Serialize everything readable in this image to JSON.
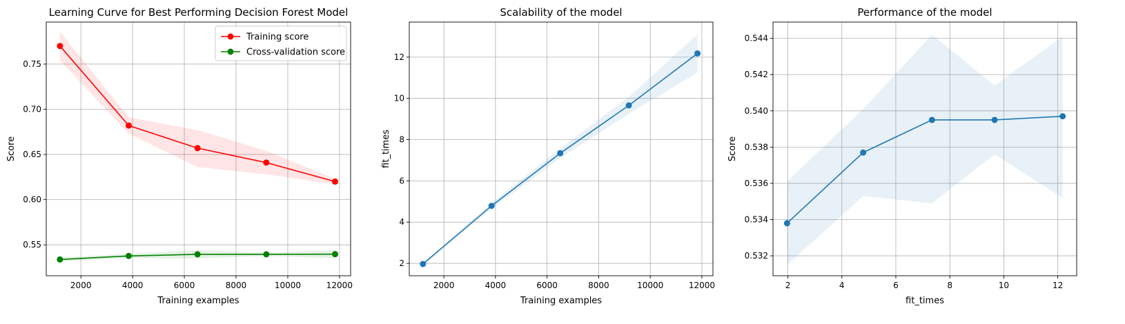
{
  "chart_data": [
    {
      "type": "line",
      "title": "Learning Curve for Best Performing Decision Forest Model",
      "xlabel": "Training examples",
      "ylabel": "Score",
      "xlim": [
        660,
        12430
      ],
      "ylim": [
        0.5158,
        0.7965
      ],
      "xticks": [
        2000,
        4000,
        6000,
        8000,
        10000,
        12000
      ],
      "yticks": [
        0.55,
        0.6,
        0.65,
        0.7,
        0.75
      ],
      "xtick_labels": [
        "2000",
        "4000",
        "6000",
        "8000",
        "10000",
        "12000"
      ],
      "ytick_labels": [
        "0.55",
        "0.60",
        "0.65",
        "0.70",
        "0.75"
      ],
      "grid": true,
      "legend": "top-right",
      "series": [
        {
          "name": "Training score",
          "color": "#ff0000",
          "x": [
            1190,
            3850,
            6510,
            9170,
            11830
          ],
          "y": [
            0.77,
            0.682,
            0.657,
            0.641,
            0.62
          ],
          "lower": [
            0.754,
            0.673,
            0.636,
            0.628,
            0.617
          ],
          "upper": [
            0.786,
            0.691,
            0.677,
            0.654,
            0.623
          ]
        },
        {
          "name": "Cross-validation score",
          "color": "#008000",
          "x": [
            1190,
            3850,
            6510,
            9170,
            11830
          ],
          "y": [
            0.5338,
            0.5377,
            0.5395,
            0.5395,
            0.5397
          ],
          "lower": [
            0.5315,
            0.5353,
            0.5349,
            0.5376,
            0.5352
          ],
          "upper": [
            0.5361,
            0.5401,
            0.5442,
            0.5414,
            0.5441
          ]
        }
      ]
    },
    {
      "type": "line",
      "title": "Scalability of the model",
      "xlabel": "Training examples",
      "ylabel": "fit_times",
      "xlim": [
        660,
        12430
      ],
      "ylim": [
        1.4,
        13.7
      ],
      "xticks": [
        2000,
        4000,
        6000,
        8000,
        10000,
        12000
      ],
      "yticks": [
        2,
        4,
        6,
        8,
        10,
        12
      ],
      "xtick_labels": [
        "2000",
        "4000",
        "6000",
        "8000",
        "10000",
        "12000"
      ],
      "ytick_labels": [
        "2",
        "4",
        "6",
        "8",
        "10",
        "12"
      ],
      "grid": true,
      "series": [
        {
          "color": "#1f77b4",
          "x": [
            1190,
            3850,
            6510,
            9170,
            11830
          ],
          "y": [
            1.97,
            4.79,
            7.34,
            9.66,
            12.18
          ],
          "lower": [
            1.93,
            4.65,
            7.1,
            9.25,
            11.25
          ],
          "upper": [
            2.01,
            4.93,
            7.58,
            10.07,
            13.11
          ]
        }
      ]
    },
    {
      "type": "line",
      "title": "Performance of the model",
      "xlabel": "fit_times",
      "ylabel": "Score",
      "xlim": [
        1.45,
        12.7
      ],
      "ylim": [
        0.5309,
        0.5449
      ],
      "xticks": [
        2,
        4,
        6,
        8,
        10,
        12
      ],
      "yticks": [
        0.532,
        0.534,
        0.536,
        0.538,
        0.54,
        0.542,
        0.544
      ],
      "xtick_labels": [
        "2",
        "4",
        "6",
        "8",
        "10",
        "12"
      ],
      "ytick_labels": [
        "0.532",
        "0.534",
        "0.536",
        "0.538",
        "0.540",
        "0.542",
        "0.544"
      ],
      "grid": true,
      "series": [
        {
          "color": "#1f77b4",
          "x": [
            1.97,
            4.79,
            7.34,
            9.66,
            12.18
          ],
          "y": [
            0.5338,
            0.5377,
            0.5395,
            0.5395,
            0.5397
          ],
          "lower": [
            0.5315,
            0.5353,
            0.5349,
            0.5376,
            0.5352
          ],
          "upper": [
            0.5361,
            0.5401,
            0.5442,
            0.5414,
            0.5441
          ]
        }
      ]
    }
  ]
}
